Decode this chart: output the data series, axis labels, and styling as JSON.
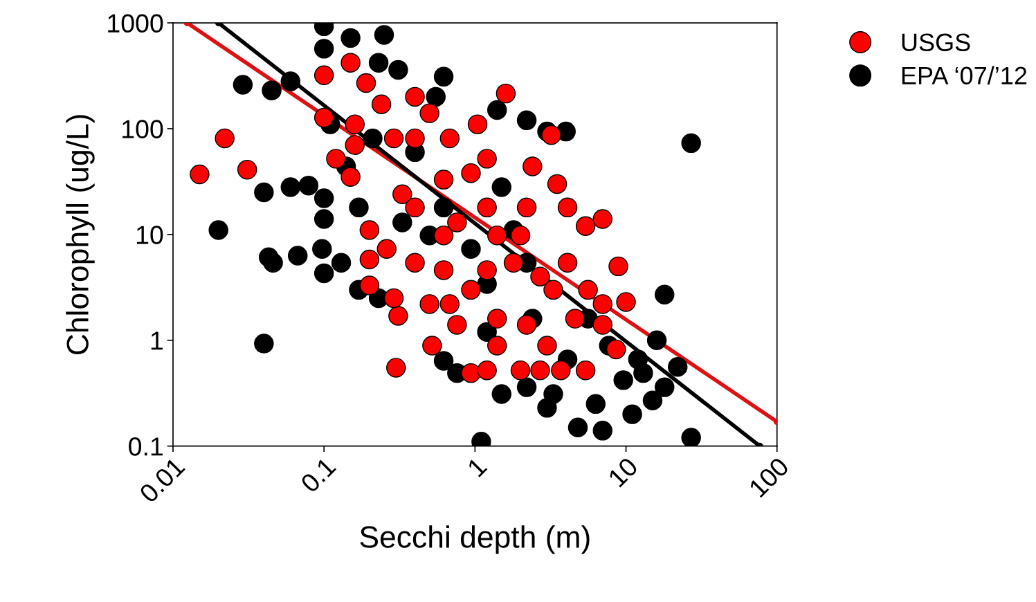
{
  "chart_data": {
    "type": "scatter",
    "xlabel": "Secchi depth (m)",
    "ylabel": "Chlorophyll (ug/L)",
    "log": "xy",
    "xlim": [
      0.01,
      100
    ],
    "ylim": [
      0.1,
      1000
    ],
    "xticks": [
      0.01,
      0.1,
      1,
      10,
      100
    ],
    "yticks": [
      0.1,
      1,
      10,
      100,
      1000
    ],
    "grid": false,
    "legend": "top right",
    "marker": "circle",
    "series": [
      {
        "name": "USGS",
        "color": "#ff0000",
        "x": [
          0.015,
          0.022,
          0.031,
          0.3,
          1.6,
          0.1,
          0.1,
          0.15,
          0.12,
          0.16,
          0.16,
          0.15,
          0.19,
          0.2,
          0.2,
          0.2,
          0.24,
          0.31,
          0.4,
          0.52,
          0.68,
          0.94,
          1.2,
          2.0,
          2.7,
          3.7,
          5.4,
          1.04,
          1.2,
          2.4,
          3.2,
          3.5,
          4.1,
          5.4,
          7.0,
          8.9,
          10,
          7.0,
          8.6,
          5.6,
          3.3,
          2.2,
          1.4,
          0.94,
          0.62,
          0.4,
          0.29,
          0.26,
          0.33,
          0.4,
          0.62,
          0.76,
          1.2,
          1.4,
          2.2,
          1.8,
          1.2,
          0.62,
          0.4,
          0.68,
          0.5,
          0.29,
          0.94,
          2.0,
          2.7,
          4.1,
          4.6,
          7.0,
          0.5,
          0.76,
          1.4,
          3.0
        ],
        "values": [
          37,
          81,
          41,
          0.55,
          215,
          320,
          127,
          420,
          52,
          110,
          70,
          35,
          270,
          11,
          5.8,
          3.3,
          170,
          1.7,
          200,
          0.89,
          2.2,
          0.49,
          0.52,
          0.52,
          0.52,
          0.52,
          0.52,
          110,
          52,
          44,
          87,
          30,
          18,
          12,
          14,
          5.0,
          2.3,
          1.4,
          0.82,
          3.0,
          3.0,
          1.4,
          1.6,
          3.0,
          4.6,
          5.4,
          2.5,
          7.3,
          24,
          18,
          33,
          13,
          18,
          9.8,
          18,
          5.4,
          4.6,
          9.8,
          81,
          81,
          140,
          81,
          38,
          9.8,
          4.0,
          5.4,
          1.6,
          2.2,
          2.2,
          1.4,
          0.89,
          0.89
        ]
      },
      {
        "name": "EPA ‘07/’12",
        "color": "#000000",
        "x": [
          0.1,
          0.25,
          0.15,
          0.1,
          0.029,
          0.045,
          0.06,
          0.62,
          4.0,
          27,
          0.04,
          0.06,
          0.079,
          0.1,
          0.02,
          0.1,
          0.043,
          0.046,
          0.067,
          0.097,
          0.1,
          0.04,
          0.62,
          1.1,
          1.5,
          3.0,
          4.8,
          7.0,
          18,
          27,
          16,
          18,
          11,
          6.3,
          3.3,
          2.2,
          0.76,
          0.23,
          0.31,
          0.55,
          1.4,
          2.2,
          3.0,
          1.5,
          0.14,
          0.17,
          0.17,
          0.13,
          0.23,
          0.11,
          0.21,
          0.4,
          2.2,
          5.6,
          7.7,
          12,
          13,
          15,
          9.6,
          1.2,
          2.4,
          0.33,
          0.62,
          0.5,
          0.94,
          1.8,
          1.2,
          4.1,
          22
        ],
        "values": [
          930,
          770,
          720,
          570,
          260,
          230,
          280,
          310,
          94,
          73,
          25,
          28,
          29,
          22,
          11,
          14,
          6.1,
          5.4,
          6.3,
          7.3,
          4.3,
          0.93,
          0.64,
          0.11,
          0.31,
          0.23,
          0.15,
          0.14,
          2.7,
          0.12,
          1.0,
          0.36,
          0.2,
          0.25,
          0.31,
          0.36,
          0.49,
          420,
          360,
          200,
          150,
          120,
          94,
          28,
          44,
          18,
          3.0,
          5.4,
          2.5,
          110,
          81,
          60,
          5.4,
          1.6,
          0.89,
          0.66,
          0.49,
          0.27,
          0.42,
          1.2,
          1.6,
          13,
          18,
          9.8,
          7.3,
          11,
          3.4,
          0.66,
          0.56
        ]
      },
      {
        "type": "line",
        "color": "#dd1111",
        "x": [
          0.0124,
          100
        ],
        "values": [
          1000,
          0.17
        ]
      },
      {
        "type": "line",
        "color": "#000000",
        "x": [
          0.02,
          77
        ],
        "values": [
          1000,
          0.1
        ]
      }
    ]
  }
}
